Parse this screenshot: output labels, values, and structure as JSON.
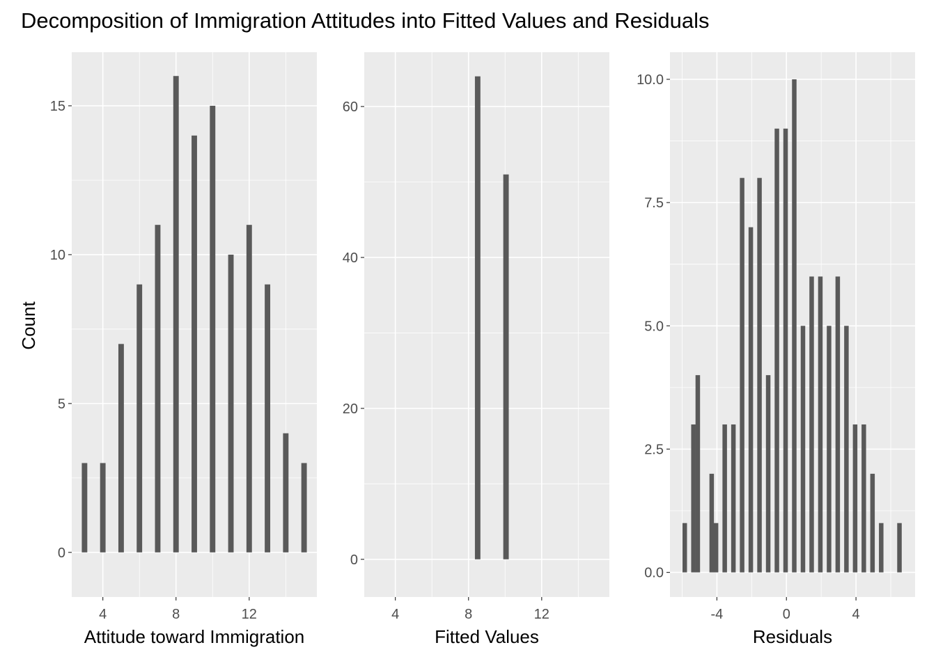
{
  "title": "Decomposition of Immigration Attitudes into Fitted Values and Residuals",
  "y_axis_title": "Count",
  "colors": {
    "panel": "#ebebeb",
    "grid": "#ffffff",
    "bar": "#595959",
    "tick": "#4d4d4d"
  },
  "chart_data": [
    {
      "type": "bar",
      "xlabel": "Attitude toward Immigration",
      "ylabel": "Count",
      "xlim": [
        2.3,
        15.7
      ],
      "ylim": [
        -1.5,
        16.8
      ],
      "x_breaks": [
        4,
        8,
        12
      ],
      "x_minor_breaks": [
        6,
        10,
        14
      ],
      "y_breaks": [
        0,
        5,
        10,
        15
      ],
      "y_minor_breaks": [
        2.5,
        7.5,
        12.5
      ],
      "y_tick_labels": [
        "0",
        "5",
        "10",
        "15"
      ],
      "bar_width": 0.3,
      "x": [
        3,
        4,
        5,
        6,
        7,
        8,
        9,
        10,
        11,
        12,
        13,
        14,
        15
      ],
      "values": [
        3,
        3,
        7,
        9,
        11,
        16,
        14,
        15,
        10,
        11,
        9,
        4,
        3
      ]
    },
    {
      "type": "bar",
      "xlabel": "Fitted Values",
      "ylabel": "",
      "xlim": [
        2.3,
        15.7
      ],
      "ylim": [
        -5,
        67.2
      ],
      "x_breaks": [
        4,
        8,
        12
      ],
      "x_minor_breaks": [
        6,
        10,
        14
      ],
      "y_breaks": [
        0,
        20,
        40,
        60
      ],
      "y_minor_breaks": [
        10,
        30,
        50
      ],
      "y_tick_labels": [
        "0",
        "20",
        "40",
        "60"
      ],
      "bar_width": 0.3,
      "x": [
        8.5,
        10.05
      ],
      "values": [
        64,
        51
      ]
    },
    {
      "type": "bar",
      "xlabel": "Residuals",
      "ylabel": "",
      "xlim": [
        -6.7,
        7.4
      ],
      "ylim": [
        -0.5,
        10.55
      ],
      "x_breaks": [
        -4,
        0,
        4
      ],
      "x_minor_breaks": [
        -6,
        -2,
        2,
        6
      ],
      "y_breaks": [
        0,
        2.5,
        5,
        7.5,
        10
      ],
      "y_minor_breaks": [
        1.25,
        3.75,
        6.25,
        8.75
      ],
      "y_tick_labels": [
        "0.0",
        "2.5",
        "5.0",
        "7.5",
        "10.0"
      ],
      "bar_width": 0.26,
      "x": [
        -5.85,
        -5.35,
        -5.1,
        -4.3,
        -4.05,
        -3.55,
        -3.05,
        -2.55,
        -2.05,
        -1.55,
        -1.05,
        -0.55,
        -0.05,
        0.45,
        0.95,
        1.45,
        1.95,
        2.45,
        2.95,
        3.45,
        3.95,
        4.45,
        4.95,
        5.45,
        6.5
      ],
      "values": [
        1,
        3,
        4,
        2,
        1,
        3,
        3,
        8,
        7,
        8,
        4,
        9,
        9,
        10,
        5,
        6,
        6,
        5,
        6,
        5,
        3,
        3,
        2,
        1,
        1
      ]
    }
  ]
}
